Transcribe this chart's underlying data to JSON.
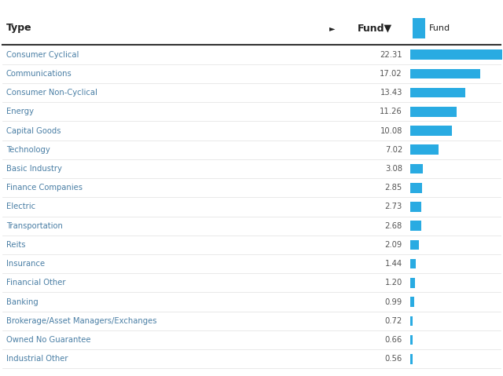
{
  "categories": [
    "Consumer Cyclical",
    "Communications",
    "Consumer Non-Cyclical",
    "Energy",
    "Capital Goods",
    "Technology",
    "Basic Industry",
    "Finance Companies",
    "Electric",
    "Transportation",
    "Reits",
    "Insurance",
    "Financial Other",
    "Banking",
    "Brokerage/Asset Managers/Exchanges",
    "Owned No Guarantee",
    "Industrial Other"
  ],
  "values": [
    22.31,
    17.02,
    13.43,
    11.26,
    10.08,
    7.02,
    3.08,
    2.85,
    2.73,
    2.68,
    2.09,
    1.44,
    1.2,
    0.99,
    0.72,
    0.66,
    0.56
  ],
  "bar_color": "#29ABE2",
  "background_color": "#ffffff",
  "fig_width": 6.4,
  "fig_height": 4.79,
  "max_val": 22.31,
  "type_col_label": "Type",
  "fund_col_label": "Fund",
  "legend_label": "Fund",
  "header_arrow": "►",
  "sort_arrow": "▼",
  "label_color": "#4a7fa5",
  "value_color": "#555555",
  "header_bold_color": "#222222",
  "sep_color_dark": "#333333",
  "sep_color_light": "#e0e0e0"
}
